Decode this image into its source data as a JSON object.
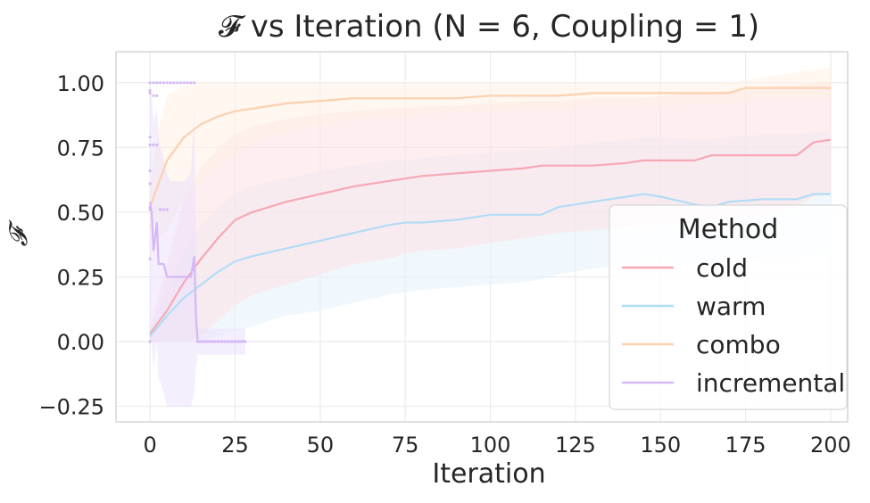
{
  "chart_data": {
    "type": "line",
    "title": "𝓕 vs Iteration (N = 6, Coupling = 1)",
    "xlabel": "Iteration",
    "ylabel": "𝓕",
    "xlim": [
      -10,
      205
    ],
    "ylim": [
      -0.31,
      1.12
    ],
    "xticks": [
      0,
      25,
      50,
      75,
      100,
      125,
      150,
      175,
      200
    ],
    "yticks": [
      -0.25,
      0.0,
      0.25,
      0.5,
      0.75,
      1.0
    ],
    "xtick_labels": [
      "0",
      "25",
      "50",
      "75",
      "100",
      "125",
      "150",
      "175",
      "200"
    ],
    "ytick_labels": [
      "−0.25",
      "0.00",
      "0.25",
      "0.50",
      "0.75",
      "1.00"
    ],
    "grid": true,
    "legend": {
      "title": "Method",
      "placement": "lower-right"
    },
    "series": [
      {
        "name": "cold",
        "color": "#f7a8b4",
        "band_color": "#fde0e4",
        "x": [
          0,
          5,
          10,
          15,
          20,
          25,
          30,
          40,
          50,
          60,
          70,
          75,
          80,
          90,
          100,
          110,
          115,
          120,
          130,
          140,
          145,
          150,
          160,
          165,
          170,
          180,
          190,
          195,
          200
        ],
        "mean": [
          0.03,
          0.12,
          0.23,
          0.32,
          0.4,
          0.47,
          0.5,
          0.54,
          0.57,
          0.6,
          0.62,
          0.63,
          0.64,
          0.65,
          0.66,
          0.67,
          0.68,
          0.68,
          0.68,
          0.69,
          0.7,
          0.7,
          0.7,
          0.72,
          0.72,
          0.72,
          0.72,
          0.77,
          0.78
        ],
        "upper": [
          0.06,
          0.3,
          0.55,
          0.67,
          0.75,
          0.8,
          0.83,
          0.86,
          0.88,
          0.89,
          0.9,
          0.9,
          0.91,
          0.91,
          0.92,
          0.93,
          0.93,
          0.93,
          0.94,
          0.94,
          0.94,
          0.95,
          0.96,
          0.96,
          0.97,
          0.98,
          0.99,
          1.0,
          1.0
        ],
        "lower": [
          0.0,
          0.0,
          0.0,
          0.02,
          0.08,
          0.14,
          0.18,
          0.22,
          0.26,
          0.3,
          0.32,
          0.34,
          0.35,
          0.36,
          0.38,
          0.4,
          0.41,
          0.42,
          0.43,
          0.44,
          0.45,
          0.45,
          0.46,
          0.47,
          0.48,
          0.49,
          0.52,
          0.56,
          0.57
        ]
      },
      {
        "name": "warm",
        "color": "#b3dcf7",
        "band_color": "#e4f2fc",
        "x": [
          0,
          5,
          10,
          15,
          20,
          25,
          30,
          40,
          50,
          60,
          70,
          75,
          80,
          90,
          100,
          110,
          115,
          120,
          130,
          140,
          145,
          150,
          160,
          165,
          170,
          180,
          190,
          195,
          200
        ],
        "mean": [
          0.02,
          0.1,
          0.17,
          0.22,
          0.27,
          0.31,
          0.33,
          0.36,
          0.39,
          0.42,
          0.45,
          0.46,
          0.46,
          0.47,
          0.49,
          0.49,
          0.49,
          0.52,
          0.54,
          0.56,
          0.57,
          0.56,
          0.53,
          0.52,
          0.54,
          0.55,
          0.55,
          0.57,
          0.57
        ],
        "upper": [
          0.05,
          0.2,
          0.35,
          0.45,
          0.52,
          0.57,
          0.6,
          0.63,
          0.66,
          0.68,
          0.7,
          0.7,
          0.71,
          0.72,
          0.73,
          0.74,
          0.74,
          0.75,
          0.77,
          0.78,
          0.79,
          0.79,
          0.78,
          0.78,
          0.79,
          0.8,
          0.8,
          0.81,
          0.81
        ],
        "lower": [
          0.0,
          0.0,
          0.0,
          0.0,
          0.02,
          0.04,
          0.06,
          0.1,
          0.12,
          0.15,
          0.18,
          0.19,
          0.2,
          0.21,
          0.22,
          0.23,
          0.24,
          0.26,
          0.28,
          0.3,
          0.31,
          0.31,
          0.3,
          0.3,
          0.31,
          0.32,
          0.32,
          0.34,
          0.34
        ]
      },
      {
        "name": "combo",
        "color": "#fcd0b0",
        "band_color": "#fff0e4",
        "x": [
          0,
          3,
          5,
          10,
          15,
          20,
          25,
          30,
          40,
          50,
          60,
          70,
          75,
          80,
          90,
          100,
          110,
          120,
          130,
          140,
          145,
          150,
          160,
          165,
          170,
          175,
          180,
          190,
          200
        ],
        "mean": [
          0.52,
          0.63,
          0.7,
          0.79,
          0.84,
          0.87,
          0.89,
          0.9,
          0.92,
          0.93,
          0.94,
          0.94,
          0.94,
          0.94,
          0.94,
          0.95,
          0.95,
          0.95,
          0.96,
          0.96,
          0.96,
          0.96,
          0.96,
          0.96,
          0.96,
          0.98,
          0.98,
          0.98,
          0.98
        ],
        "upper": [
          0.6,
          0.85,
          0.95,
          0.99,
          1.0,
          1.0,
          1.0,
          1.0,
          1.0,
          1.0,
          1.0,
          1.0,
          1.0,
          1.0,
          1.0,
          1.0,
          1.0,
          1.0,
          1.0,
          1.0,
          1.0,
          1.0,
          1.0,
          1.0,
          1.0,
          1.01,
          1.02,
          1.04,
          1.06
        ],
        "lower": [
          0.4,
          0.4,
          0.43,
          0.55,
          0.62,
          0.68,
          0.73,
          0.77,
          0.81,
          0.84,
          0.86,
          0.87,
          0.87,
          0.88,
          0.89,
          0.89,
          0.9,
          0.9,
          0.91,
          0.91,
          0.91,
          0.91,
          0.92,
          0.92,
          0.92,
          0.93,
          0.94,
          0.94,
          0.94
        ]
      },
      {
        "name": "incremental",
        "color": "#d5b8f5",
        "band_color": "#ebe0fb",
        "x": [
          0,
          0.5,
          1,
          2,
          2.5,
          3,
          4,
          5,
          6,
          8,
          10,
          12,
          13,
          13.5,
          14,
          15,
          20,
          25,
          28
        ],
        "mean": [
          0.54,
          0.5,
          0.35,
          0.46,
          0.3,
          0.3,
          0.3,
          0.25,
          0.25,
          0.25,
          0.25,
          0.25,
          0.33,
          0.1,
          0.0,
          0.0,
          0.0,
          0.0,
          0.0
        ],
        "upper": [
          1.0,
          0.95,
          0.85,
          0.9,
          0.8,
          0.75,
          0.7,
          0.65,
          0.62,
          0.62,
          0.62,
          0.65,
          0.9,
          0.4,
          0.05,
          0.05,
          0.05,
          0.05,
          0.05
        ],
        "lower": [
          0.0,
          0.0,
          -0.1,
          0.0,
          -0.15,
          -0.15,
          -0.2,
          -0.25,
          -0.25,
          -0.25,
          -0.25,
          -0.25,
          -0.2,
          -0.1,
          -0.05,
          -0.05,
          -0.05,
          -0.05,
          -0.05
        ],
        "scatter_x": [
          0,
          0,
          0,
          0,
          0,
          0,
          0,
          0,
          0,
          0,
          0,
          1,
          2,
          3,
          4,
          5,
          6,
          7,
          8,
          9,
          10,
          11,
          12,
          13,
          1,
          2,
          1,
          2,
          3,
          4,
          5,
          14,
          15,
          16,
          17,
          18,
          19,
          20,
          21,
          22,
          23,
          24,
          25,
          26,
          27,
          28
        ],
        "scatter_y": [
          1.0,
          0.97,
          0.79,
          0.66,
          0.61,
          0.52,
          0.51,
          0.32,
          0.0,
          0.96,
          0.76,
          1.0,
          1.0,
          1.0,
          1.0,
          1.0,
          1.0,
          1.0,
          1.0,
          1.0,
          1.0,
          1.0,
          1.0,
          1.0,
          0.95,
          0.95,
          0.76,
          0.76,
          0.51,
          0.51,
          0.51,
          0.0,
          0.0,
          0.0,
          0.0,
          0.0,
          0.0,
          0.0,
          0.0,
          0.0,
          0.0,
          0.0,
          0.0,
          0.0,
          0.0,
          0.0
        ]
      }
    ]
  }
}
